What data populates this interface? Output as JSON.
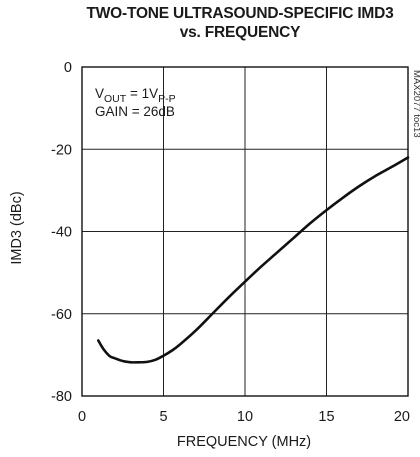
{
  "chart_data": {
    "type": "line",
    "title_line1": "TWO-TONE ULTRASOUND-SPECIFIC IMD3",
    "title_line2": "vs. FREQUENCY",
    "xlabel": "FREQUENCY (MHz)",
    "ylabel": "IMD3 (dBc)",
    "xlim": [
      0,
      20
    ],
    "ylim": [
      -80,
      0
    ],
    "x_ticks": [
      "0",
      "5",
      "10",
      "15",
      "20"
    ],
    "y_ticks": [
      "0",
      "-20",
      "-40",
      "-60",
      "-80"
    ],
    "grid": true,
    "annotation_vout_prefix": "V",
    "annotation_vout_sub": "OUT",
    "annotation_vout_mid": " = 1V",
    "annotation_vout_sub2": "P-P",
    "annotation_gain": "GAIN = 26dB",
    "watermark": "MAX2077 toc13",
    "series": [
      {
        "x": [
          1.0,
          1.3,
          1.7,
          2.0,
          2.5,
          3.0,
          3.5,
          4.0,
          4.5,
          5.0,
          5.5,
          6.0,
          7.0,
          8.0,
          9.0,
          10.0,
          11.0,
          12.0,
          13.0,
          14.0,
          15.0,
          16.0,
          17.0,
          18.0,
          19.0,
          20.0
        ],
        "y": [
          -66.5,
          -68.5,
          -70.3,
          -70.8,
          -71.5,
          -71.8,
          -71.8,
          -71.7,
          -71.2,
          -70.2,
          -69.0,
          -67.5,
          -64.0,
          -60.0,
          -56.0,
          -52.2,
          -48.5,
          -45.0,
          -41.5,
          -38.0,
          -34.8,
          -31.8,
          -29.0,
          -26.5,
          -24.3,
          -22.0
        ]
      }
    ]
  }
}
